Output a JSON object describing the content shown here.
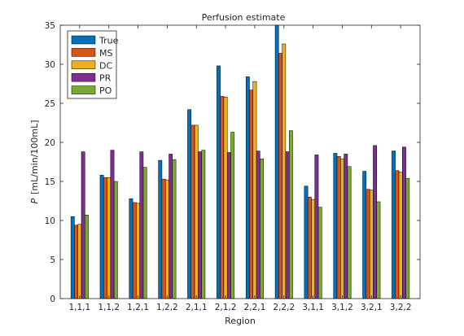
{
  "chart_data": {
    "type": "bar",
    "title": "Perfusion estimate",
    "xlabel": "Region",
    "ylabel_symbol": "P",
    "ylabel_unit": "[mL/min/100mL]",
    "ylim": [
      0,
      35
    ],
    "yticks": [
      0,
      5,
      10,
      15,
      20,
      25,
      30,
      35
    ],
    "grid": false,
    "legend_position": "top-left",
    "categories": [
      "1,1,1",
      "1,1,2",
      "1,2,1",
      "1,2,2",
      "2,1,1",
      "2,1,2",
      "2,2,1",
      "2,2,2",
      "3,1,1",
      "3,1,2",
      "3,2,1",
      "3,2,2"
    ],
    "series": [
      {
        "name": "True",
        "color": "#0072BD",
        "values": [
          10.5,
          15.8,
          12.8,
          17.7,
          24.2,
          29.8,
          28.4,
          35.0,
          14.4,
          18.6,
          16.3,
          18.9
        ]
      },
      {
        "name": "MS",
        "color": "#D95319",
        "values": [
          9.4,
          15.5,
          12.3,
          15.3,
          22.2,
          25.9,
          26.7,
          31.4,
          13.0,
          18.2,
          14.0,
          16.4
        ]
      },
      {
        "name": "DC",
        "color": "#EDB120",
        "values": [
          9.5,
          15.5,
          12.2,
          15.2,
          22.2,
          25.8,
          27.8,
          32.6,
          12.7,
          17.9,
          13.9,
          16.2
        ]
      },
      {
        "name": "PR",
        "color": "#7E2F8E",
        "values": [
          18.8,
          19.0,
          18.8,
          18.5,
          18.8,
          18.7,
          18.9,
          18.8,
          18.4,
          18.5,
          19.6,
          19.4
        ]
      },
      {
        "name": "PO",
        "color": "#77AC30",
        "values": [
          10.7,
          15.0,
          16.8,
          17.8,
          19.0,
          21.3,
          17.9,
          21.5,
          11.7,
          16.9,
          12.4,
          15.4
        ]
      }
    ]
  }
}
